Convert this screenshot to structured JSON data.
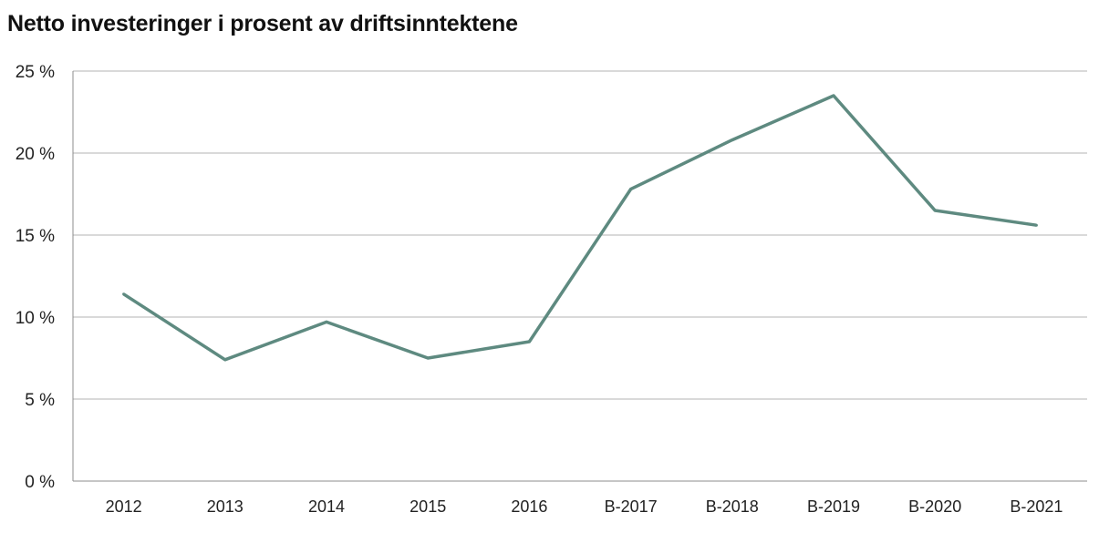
{
  "chart_data": {
    "type": "line",
    "title": "Netto investeringer i prosent av driftsinntektene",
    "xlabel": "",
    "ylabel": "",
    "categories": [
      "2012",
      "2013",
      "2014",
      "2015",
      "2016",
      "B-2017",
      "B-2018",
      "B-2019",
      "B-2020",
      "B-2021"
    ],
    "series": [
      {
        "values": [
          11.4,
          7.4,
          9.7,
          7.5,
          8.5,
          17.8,
          20.8,
          23.5,
          16.5,
          15.6
        ]
      }
    ],
    "ylim": [
      0,
      25
    ],
    "yticks": [
      0,
      5,
      10,
      15,
      20,
      25
    ],
    "ytick_labels": [
      "0 %",
      "5 %",
      "10 %",
      "15 %",
      "20 %",
      "25 %"
    ],
    "grid": true,
    "legend": "none",
    "colors": {
      "line": "#5e8a80",
      "grid": "#b3b3b3",
      "axis": "#8c8c8c"
    }
  }
}
